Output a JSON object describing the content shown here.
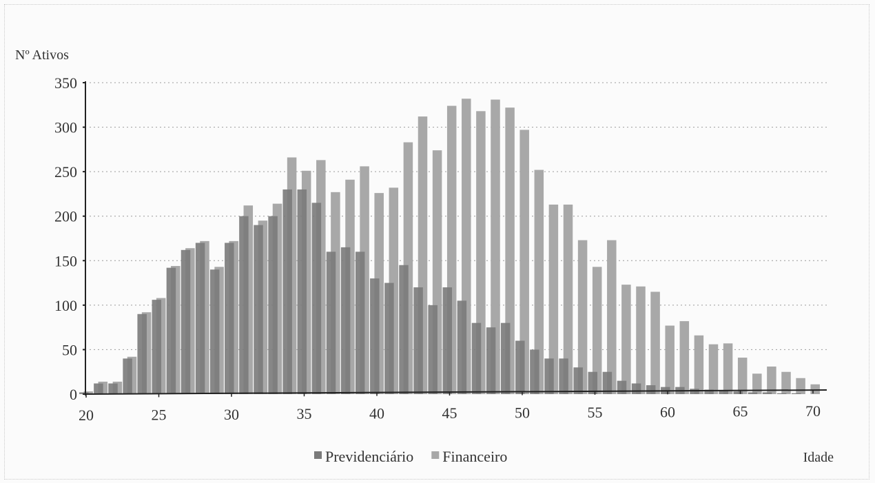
{
  "chart_data": {
    "type": "bar",
    "ylabel": "Nº Ativos",
    "xlabel": "Idade",
    "x": [
      20,
      21,
      22,
      23,
      24,
      25,
      26,
      27,
      28,
      29,
      30,
      31,
      32,
      33,
      34,
      35,
      36,
      37,
      38,
      39,
      40,
      41,
      42,
      43,
      44,
      45,
      46,
      47,
      48,
      49,
      50,
      51,
      52,
      53,
      54,
      55,
      56,
      57,
      58,
      59,
      60,
      61,
      62,
      63,
      64,
      65,
      66,
      67,
      68,
      69,
      70
    ],
    "x_ticks": [
      20,
      25,
      30,
      35,
      40,
      45,
      50,
      55,
      60,
      65,
      70
    ],
    "y_ticks": [
      0,
      50,
      100,
      150,
      200,
      250,
      300,
      350
    ],
    "ylim": [
      0,
      350
    ],
    "grid": true,
    "legend": "bottom-center",
    "series": [
      {
        "name": "Previdenciário",
        "color": "#7a7a7a",
        "values": [
          2,
          12,
          12,
          40,
          90,
          106,
          142,
          162,
          170,
          140,
          170,
          200,
          190,
          200,
          230,
          230,
          215,
          160,
          165,
          160,
          130,
          125,
          145,
          120,
          100,
          120,
          105,
          80,
          75,
          80,
          60,
          50,
          40,
          40,
          30,
          25,
          25,
          15,
          12,
          10,
          8,
          8,
          6,
          5,
          4,
          3,
          2,
          2,
          1,
          1,
          0
        ]
      },
      {
        "name": "Financeiro",
        "color": "#a8a8a8",
        "values": [
          3,
          14,
          14,
          42,
          92,
          108,
          144,
          164,
          172,
          143,
          172,
          212,
          195,
          214,
          266,
          251,
          263,
          227,
          241,
          256,
          226,
          232,
          283,
          312,
          274,
          324,
          332,
          318,
          331,
          322,
          297,
          252,
          213,
          213,
          173,
          143,
          173,
          123,
          121,
          115,
          77,
          82,
          66,
          56,
          57,
          41,
          23,
          31,
          25,
          18,
          11
        ]
      }
    ]
  }
}
